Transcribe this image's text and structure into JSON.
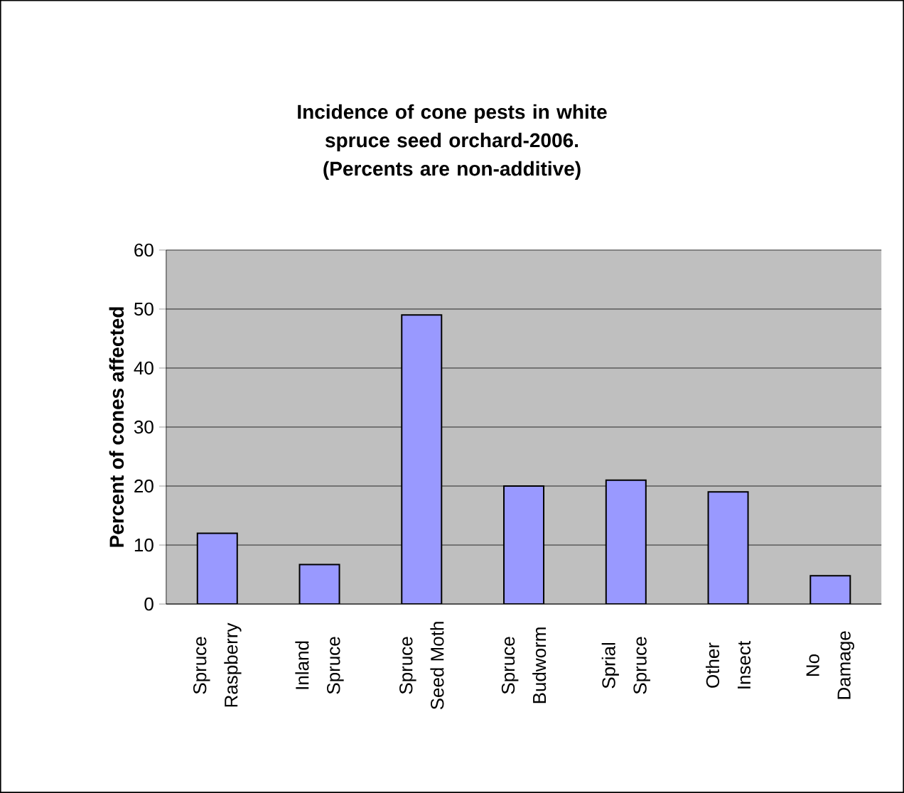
{
  "chart_data": {
    "type": "bar",
    "title": "Incidence of cone pests in white spruce seed orchard-2006.",
    "subtitle": "(Percents are non-additive)",
    "ylabel": "Percent of cones affected",
    "categories": [
      "Spruce Raspberry",
      "Inland Spruce",
      "Spruce Seed Moth",
      "Spruce Budworm",
      "Sprial Spruce",
      "Other Insect",
      "No Damage"
    ],
    "values": [
      12,
      6.7,
      49,
      20,
      21,
      19,
      4.8
    ],
    "color": "#9999ff",
    "ylim": [
      0,
      60
    ],
    "yticks": [
      0,
      10,
      20,
      30,
      40,
      50,
      60
    ],
    "grid": "y"
  }
}
